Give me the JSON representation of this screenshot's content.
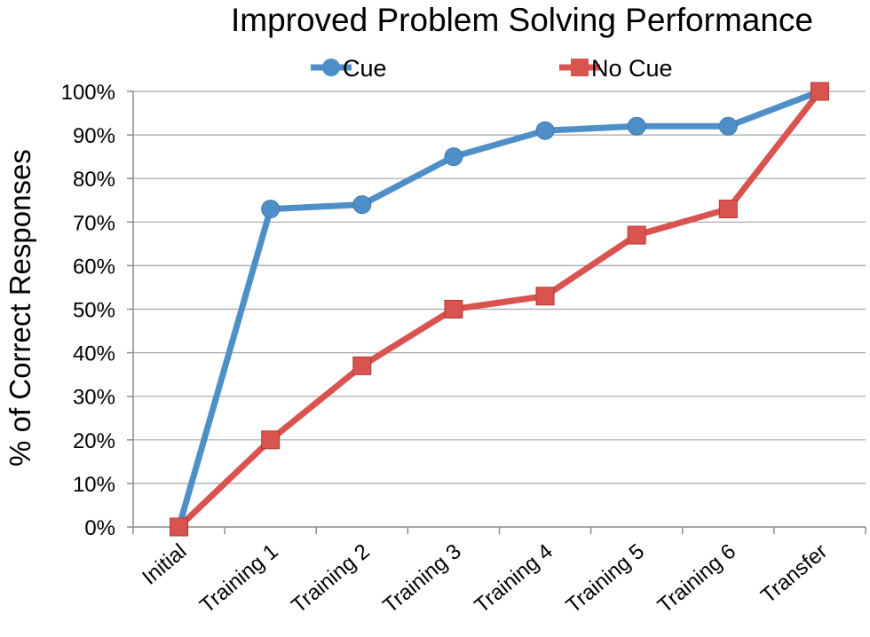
{
  "chart_data": {
    "type": "line",
    "title": "Improved Problem Solving Performance",
    "xlabel": "",
    "ylabel": "% of Correct Responses",
    "categories": [
      "Initial",
      "Training 1",
      "Training 2",
      "Training 3",
      "Training 4",
      "Training 5",
      "Training 6",
      "Transfer"
    ],
    "ylim": [
      0,
      100
    ],
    "ytick_labels": [
      "0%",
      "10%",
      "20%",
      "30%",
      "40%",
      "50%",
      "60%",
      "70%",
      "80%",
      "90%",
      "100%"
    ],
    "grid": true,
    "legend_position": "top",
    "series": [
      {
        "name": "Cue",
        "color": "#4f8fc7",
        "marker": "circle",
        "values": [
          0,
          73,
          74,
          85,
          91,
          92,
          92,
          100
        ]
      },
      {
        "name": "No Cue",
        "color": "#d9534f",
        "marker": "square",
        "values": [
          0,
          20,
          37,
          50,
          53,
          67,
          73,
          100
        ]
      }
    ]
  }
}
